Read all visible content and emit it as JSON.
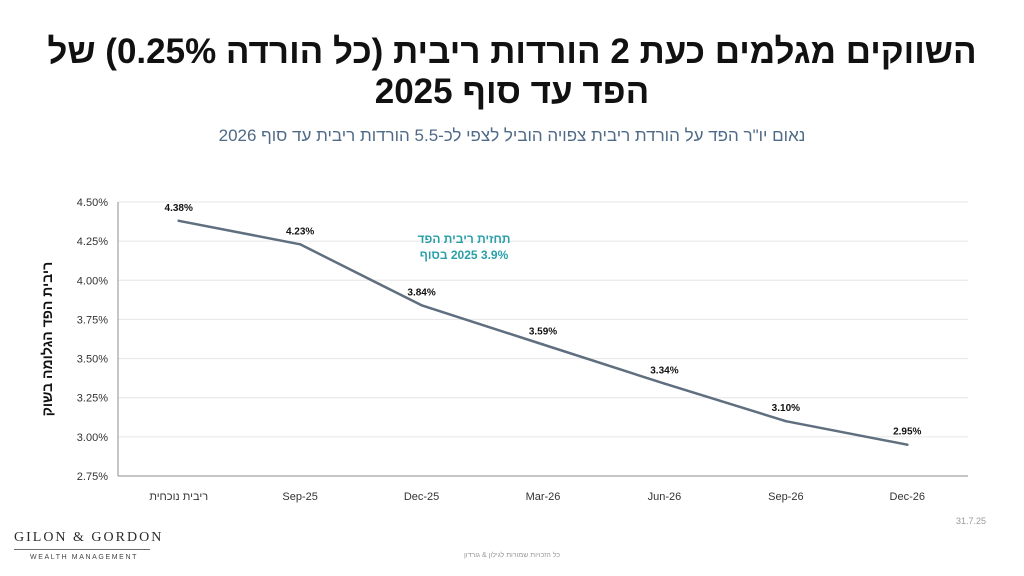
{
  "header": {
    "title_line1": "השווקים מגלמים כעת 2 הורדות ריבית (כל הורדה 0.25%) של",
    "title_line2": "הפד עד סוף  2025",
    "subtitle": "נאום יו\"ר הפד על הורדת ריבית צפויה הוביל לצפי לכ-5.5 הורדות ריבית עד סוף 2026"
  },
  "chart_data": {
    "type": "line",
    "categories": [
      "ריבית נוכחית",
      "Sep-25",
      "Dec-25",
      "Mar-26",
      "Jun-26",
      "Sep-26",
      "Dec-26"
    ],
    "values": [
      4.38,
      4.23,
      3.84,
      3.59,
      3.34,
      3.1,
      2.95
    ],
    "data_labels": [
      "4.38%",
      "4.23%",
      "3.84%",
      "3.59%",
      "3.34%",
      "3.10%",
      "2.95%"
    ],
    "ylabel": "ריבית הפד הגלומה בשוק",
    "xlabel": "",
    "ylim": [
      2.75,
      4.5
    ],
    "yticks": [
      2.75,
      3.0,
      3.25,
      3.5,
      3.75,
      4.0,
      4.25,
      4.5
    ],
    "ytick_labels": [
      "2.75%",
      "3.00%",
      "3.25%",
      "3.50%",
      "3.75%",
      "4.00%",
      "4.25%",
      "4.50%"
    ],
    "grid": true,
    "annotation": {
      "line1": "תחזית ריבית הפד",
      "line2": "3.9% 2025 בסוף"
    },
    "colors": {
      "line": "#5f6f7f",
      "annotation": "#2a9fa8",
      "grid": "#e6e6e6",
      "axis": "#8c8c8c"
    }
  },
  "branding": {
    "logo_text": "GILON & GORDON",
    "logo_tagline": "WEALTH MANAGEMENT"
  },
  "footer": {
    "date": "31.7.25",
    "copyright": "כל הזכויות שמורות לגילון & גורדון"
  }
}
